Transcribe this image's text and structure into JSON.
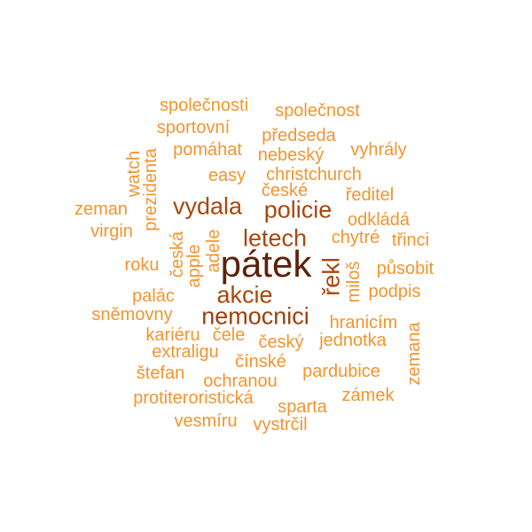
{
  "words": [
    {
      "text": "pátek",
      "color": "#5c2108",
      "vertical": false
    },
    {
      "text": "nemocnici",
      "color": "#9e3f0b",
      "vertical": false
    },
    {
      "text": "akcie",
      "color": "#a8470c",
      "vertical": false
    },
    {
      "text": "policie",
      "color": "#a8470c",
      "vertical": false
    },
    {
      "text": "vydala",
      "color": "#a8470c",
      "vertical": false
    },
    {
      "text": "letech",
      "color": "#a8470c",
      "vertical": false
    },
    {
      "text": "řekl",
      "color": "#a8470c",
      "vertical": true
    },
    {
      "text": "společnosti",
      "color": "#f2952f",
      "vertical": false
    },
    {
      "text": "společnost",
      "color": "#f2952f",
      "vertical": false
    },
    {
      "text": "sportovní",
      "color": "#f2952f",
      "vertical": false
    },
    {
      "text": "předseda",
      "color": "#f2952f",
      "vertical": false
    },
    {
      "text": "pomáhat",
      "color": "#f2952f",
      "vertical": false
    },
    {
      "text": "nebeský",
      "color": "#f2952f",
      "vertical": false
    },
    {
      "text": "vyhrály",
      "color": "#f2952f",
      "vertical": false
    },
    {
      "text": "easy",
      "color": "#f2952f",
      "vertical": false
    },
    {
      "text": "christchurch",
      "color": "#f2952f",
      "vertical": false
    },
    {
      "text": "české",
      "color": "#f2952f",
      "vertical": false
    },
    {
      "text": "ředitel",
      "color": "#f2952f",
      "vertical": false
    },
    {
      "text": "zeman",
      "color": "#f2952f",
      "vertical": false
    },
    {
      "text": "odkládá",
      "color": "#f2952f",
      "vertical": false
    },
    {
      "text": "virgin",
      "color": "#f2952f",
      "vertical": false
    },
    {
      "text": "chytré",
      "color": "#f2952f",
      "vertical": false
    },
    {
      "text": "třinci",
      "color": "#f2952f",
      "vertical": false
    },
    {
      "text": "roku",
      "color": "#f2952f",
      "vertical": false
    },
    {
      "text": "působit",
      "color": "#f2952f",
      "vertical": false
    },
    {
      "text": "palác",
      "color": "#f2952f",
      "vertical": false
    },
    {
      "text": "podpis",
      "color": "#f2952f",
      "vertical": false
    },
    {
      "text": "sněmovny",
      "color": "#f2952f",
      "vertical": false
    },
    {
      "text": "hranicím",
      "color": "#f2952f",
      "vertical": false
    },
    {
      "text": "kariéru",
      "color": "#f2952f",
      "vertical": false
    },
    {
      "text": "čele",
      "color": "#f2952f",
      "vertical": false
    },
    {
      "text": "český",
      "color": "#f2952f",
      "vertical": false
    },
    {
      "text": "jednotka",
      "color": "#f2952f",
      "vertical": false
    },
    {
      "text": "extraligu",
      "color": "#f2952f",
      "vertical": false
    },
    {
      "text": "čínské",
      "color": "#f2952f",
      "vertical": false
    },
    {
      "text": "štefan",
      "color": "#f2952f",
      "vertical": false
    },
    {
      "text": "pardubice",
      "color": "#f2952f",
      "vertical": false
    },
    {
      "text": "ochranou",
      "color": "#f2952f",
      "vertical": false
    },
    {
      "text": "protiteroristická",
      "color": "#f2952f",
      "vertical": false
    },
    {
      "text": "zámek",
      "color": "#f2952f",
      "vertical": false
    },
    {
      "text": "sparta",
      "color": "#f2952f",
      "vertical": false
    },
    {
      "text": "vesmíru",
      "color": "#f2952f",
      "vertical": false
    },
    {
      "text": "vystrčil",
      "color": "#f2952f",
      "vertical": false
    },
    {
      "text": "watch",
      "color": "#f2952f",
      "vertical": true
    },
    {
      "text": "prezidenta",
      "color": "#f2952f",
      "vertical": true
    },
    {
      "text": "česká",
      "color": "#f2952f",
      "vertical": true
    },
    {
      "text": "apple",
      "color": "#f2952f",
      "vertical": true
    },
    {
      "text": "adele",
      "color": "#f2952f",
      "vertical": true
    },
    {
      "text": "miloš",
      "color": "#f2952f",
      "vertical": true
    },
    {
      "text": "zemana",
      "color": "#f2952f",
      "vertical": true
    }
  ]
}
